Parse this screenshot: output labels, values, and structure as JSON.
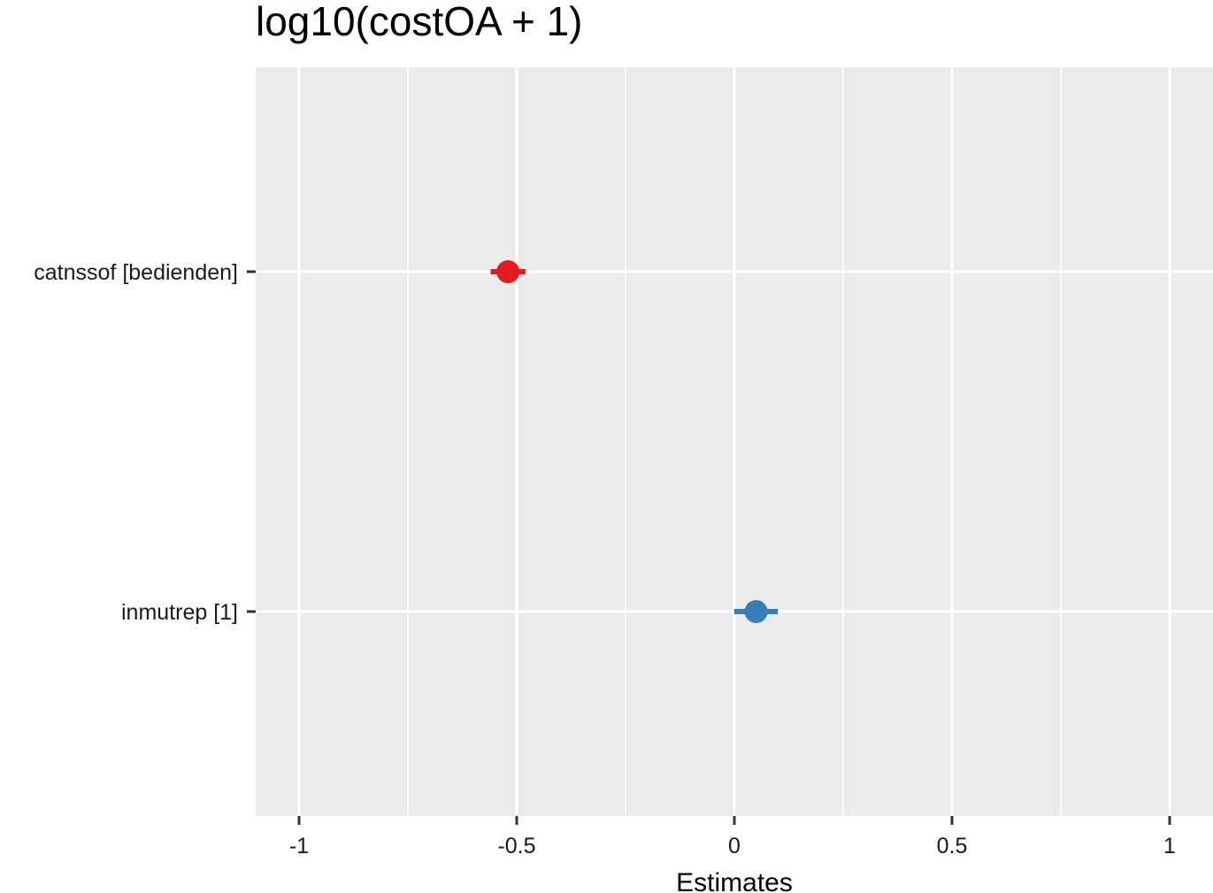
{
  "chart_data": {
    "type": "scatter",
    "title": "log10(costOA + 1)",
    "xlabel": "Estimates",
    "ylabel": "",
    "xlim": [
      -1.1,
      1.1
    ],
    "x_ticks": [
      -1,
      -0.5,
      0,
      0.5,
      1
    ],
    "x_tick_labels": [
      "-1",
      "-0.5",
      "0",
      "0.5",
      "1"
    ],
    "categories": [
      "catnssof [bedienden]",
      "inmutrep [1]"
    ],
    "estimates": [
      {
        "term": "catnssof [bedienden]",
        "estimate": -0.52,
        "conf_low": -0.56,
        "conf_high": -0.48,
        "color": "#e41a1c"
      },
      {
        "term": "inmutrep [1]",
        "estimate": 0.05,
        "conf_low": 0.0,
        "conf_high": 0.1,
        "color": "#377eb8"
      }
    ],
    "grid": true,
    "legend": "none",
    "panel_background": "#ebebeb",
    "grid_color": "#ffffff"
  }
}
